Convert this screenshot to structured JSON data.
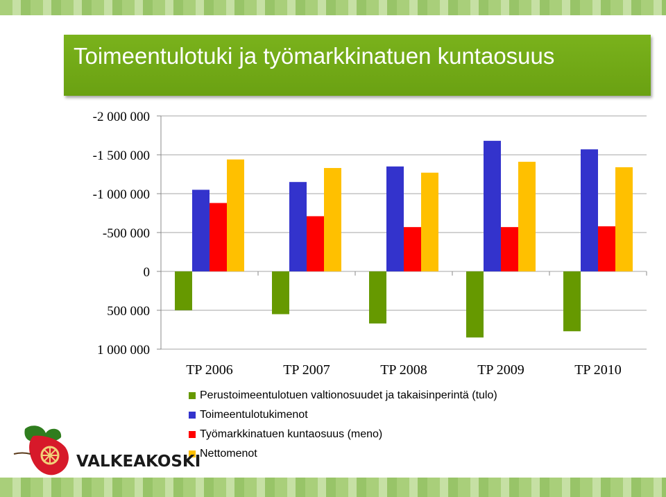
{
  "slide": {
    "title": "Toimeentulotuki ja työmarkkinatuen kuntaosuus"
  },
  "logo": {
    "text": "VALKEAKOSKI"
  },
  "chart_data": {
    "type": "bar",
    "title": "",
    "xlabel": "",
    "ylabel": "",
    "y_axis_reversed": true,
    "ylim": [
      -2000000,
      1000000
    ],
    "yticks": [
      -2000000,
      -1500000,
      -1000000,
      -500000,
      0,
      500000,
      1000000
    ],
    "ytick_labels": [
      "-2 000 000",
      "-1 500 000",
      "-1 000 000",
      "-500 000",
      "0",
      "500 000",
      "1 000 000"
    ],
    "grid": true,
    "legend_position": "bottom",
    "categories": [
      "TP 2006",
      "TP 2007",
      "TP 2008",
      "TP 2009",
      "TP 2010"
    ],
    "series": [
      {
        "name": "Perustoimeentulotuen valtionosuudet ja takaisinperintä (tulo)",
        "color": "#669900",
        "values": [
          500000,
          550000,
          670000,
          850000,
          770000
        ]
      },
      {
        "name": "Toimeentulotukimenot",
        "color": "#3333cc",
        "values": [
          -1050000,
          -1150000,
          -1350000,
          -1680000,
          -1570000
        ]
      },
      {
        "name": "Työmarkkinatuen kuntaosuus (meno)",
        "color": "#ff0000",
        "values": [
          -880000,
          -710000,
          -570000,
          -570000,
          -580000
        ]
      },
      {
        "name": "Nettomenot",
        "color": "#ffc000",
        "values": [
          -1440000,
          -1330000,
          -1270000,
          -1410000,
          -1340000
        ]
      }
    ]
  }
}
